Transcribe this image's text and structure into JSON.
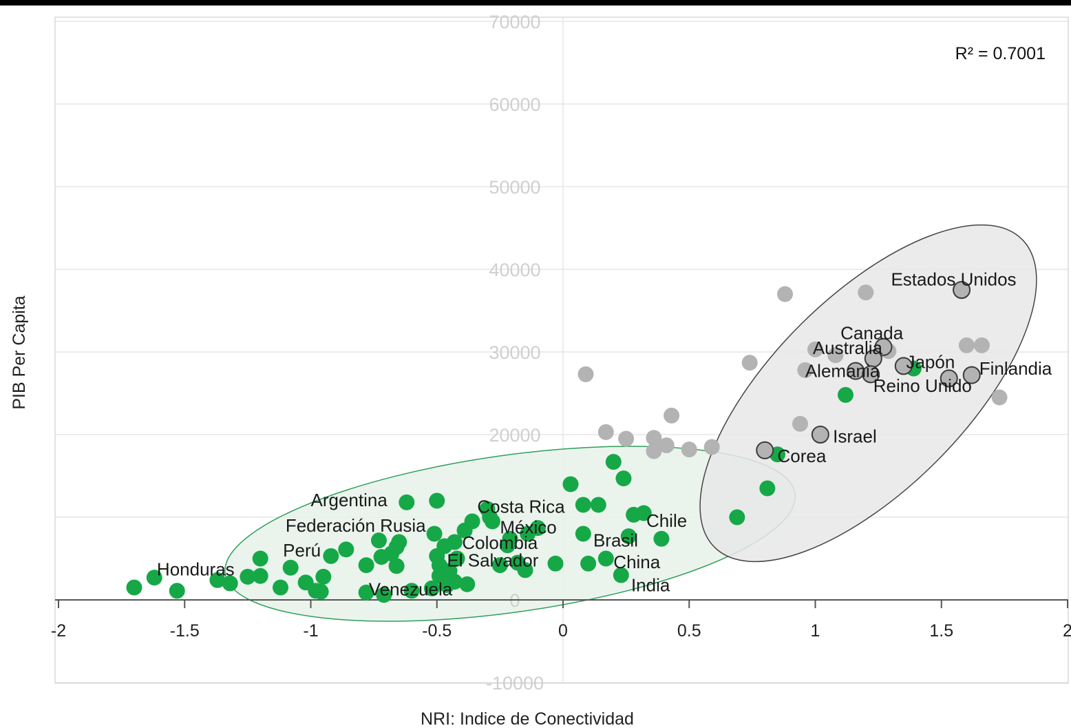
{
  "chart_data": {
    "type": "scatter",
    "xlabel": "NRI: Indice de Conectividad",
    "ylabel": "PIB Per Capita",
    "xlim": [
      -2,
      2
    ],
    "ylim": [
      -10000,
      70000
    ],
    "xticks": [
      -2,
      -1.5,
      -1,
      -0.5,
      0,
      0.5,
      1,
      1.5,
      2
    ],
    "xtick_labels": [
      "-2",
      "-1.5",
      "-1",
      "-0.5",
      "0",
      "0.5",
      "1",
      "1.5",
      "2"
    ],
    "yticks": [
      -10000,
      0,
      10000,
      20000,
      30000,
      40000,
      50000,
      60000,
      70000
    ],
    "ytick_labels": [
      "-10000",
      "0",
      "",
      "20000",
      "30000",
      "40000",
      "50000",
      "60000",
      "70000"
    ],
    "grid": true,
    "annotation": "R² = 0.7001",
    "colors": {
      "green": "#16a847",
      "gray": "#b3b3b3",
      "gray_outlined": "#b3b3b3"
    },
    "series": [
      {
        "color": "green",
        "points": [
          [
            -1.7,
            1500
          ],
          [
            -1.62,
            2700
          ],
          [
            -1.53,
            1100
          ],
          [
            -1.37,
            2400
          ],
          [
            -1.32,
            2000
          ],
          [
            -1.25,
            2800
          ],
          [
            -1.2,
            2900
          ],
          [
            -1.2,
            5000
          ],
          [
            -1.12,
            1500
          ],
          [
            -1.08,
            3900
          ],
          [
            -1.02,
            2100
          ],
          [
            -0.98,
            1100
          ],
          [
            -0.96,
            1000
          ],
          [
            -0.95,
            2800
          ],
          [
            -0.92,
            5300
          ],
          [
            -0.86,
            6100
          ],
          [
            -0.78,
            4200
          ],
          [
            -0.78,
            900
          ],
          [
            -0.73,
            7200
          ],
          [
            -0.72,
            5200
          ],
          [
            -0.71,
            600
          ],
          [
            -0.68,
            5600
          ],
          [
            -0.66,
            6400
          ],
          [
            -0.66,
            4100
          ],
          [
            -0.65,
            7000
          ],
          [
            -0.62,
            11800
          ],
          [
            -0.6,
            1100
          ],
          [
            -0.52,
            1400
          ],
          [
            -0.51,
            8000
          ],
          [
            -0.5,
            12000
          ],
          [
            -0.5,
            5300
          ],
          [
            -0.49,
            4200
          ],
          [
            -0.49,
            2900
          ],
          [
            -0.47,
            6500
          ],
          [
            -0.46,
            1800
          ],
          [
            -0.45,
            3500
          ],
          [
            -0.43,
            7000
          ],
          [
            -0.43,
            2200
          ],
          [
            -0.42,
            5000
          ],
          [
            -0.39,
            8400
          ],
          [
            -0.38,
            1900
          ],
          [
            -0.36,
            9500
          ],
          [
            -0.3,
            11000
          ],
          [
            -0.29,
            10000
          ],
          [
            -0.28,
            9500
          ],
          [
            -0.25,
            4200
          ],
          [
            -0.22,
            6600
          ],
          [
            -0.21,
            7400
          ],
          [
            -0.18,
            4500
          ],
          [
            -0.15,
            3600
          ],
          [
            -0.14,
            8000
          ],
          [
            -0.1,
            8700
          ],
          [
            -0.03,
            4400
          ],
          [
            0.03,
            14000
          ],
          [
            0.08,
            11500
          ],
          [
            0.08,
            8000
          ],
          [
            0.1,
            4400
          ],
          [
            0.14,
            11500
          ],
          [
            0.17,
            5000
          ],
          [
            0.2,
            16700
          ],
          [
            0.23,
            3000
          ],
          [
            0.24,
            14700
          ],
          [
            0.26,
            7700
          ],
          [
            0.28,
            10300
          ],
          [
            0.32,
            10500
          ],
          [
            0.39,
            7400
          ],
          [
            0.69,
            10000
          ],
          [
            0.81,
            13500
          ],
          [
            0.85,
            17600
          ],
          [
            1.12,
            24800
          ],
          [
            1.39,
            28000
          ]
        ]
      },
      {
        "color": "gray",
        "points": [
          [
            0.09,
            27300
          ],
          [
            0.17,
            20300
          ],
          [
            0.25,
            19500
          ],
          [
            0.36,
            18000
          ],
          [
            0.36,
            19600
          ],
          [
            0.41,
            18700
          ],
          [
            0.43,
            22300
          ],
          [
            0.5,
            18200
          ],
          [
            0.59,
            18500
          ],
          [
            0.74,
            28700
          ],
          [
            0.88,
            37000
          ],
          [
            0.94,
            21300
          ],
          [
            0.96,
            27800
          ],
          [
            1.0,
            30300
          ],
          [
            1.08,
            29600
          ],
          [
            1.2,
            37200
          ],
          [
            1.27,
            30300
          ],
          [
            1.29,
            30100
          ],
          [
            1.6,
            30800
          ],
          [
            1.66,
            30800
          ],
          [
            1.73,
            24500
          ]
        ]
      },
      {
        "color": "gray_outlined",
        "points": [
          [
            1.58,
            37500
          ],
          [
            1.27,
            30600
          ],
          [
            1.23,
            29200
          ],
          [
            1.35,
            28300
          ],
          [
            1.16,
            27700
          ],
          [
            1.22,
            27300
          ],
          [
            1.53,
            26800
          ],
          [
            1.62,
            27200
          ],
          [
            1.02,
            20000
          ],
          [
            0.8,
            18100
          ]
        ]
      }
    ],
    "point_labels": [
      {
        "text": "Estados Unidos",
        "x": 1.3,
        "y": 38800
      },
      {
        "text": "Canada",
        "x": 1.1,
        "y": 32300
      },
      {
        "text": "Australia",
        "x": 0.99,
        "y": 30500
      },
      {
        "text": "Japón",
        "x": 1.36,
        "y": 28800
      },
      {
        "text": "Alemania",
        "x": 0.96,
        "y": 27700
      },
      {
        "text": "Finlandia",
        "x": 1.65,
        "y": 28000
      },
      {
        "text": "Reino Unido",
        "x": 1.23,
        "y": 25900
      },
      {
        "text": "Israel",
        "x": 1.07,
        "y": 19800
      },
      {
        "text": "Corea",
        "x": 0.85,
        "y": 17400
      },
      {
        "text": "Argentina",
        "x": -1.0,
        "y": 12100
      },
      {
        "text": "Costa Rica",
        "x": -0.34,
        "y": 11300
      },
      {
        "text": "Chile",
        "x": 0.33,
        "y": 9600
      },
      {
        "text": "Federación Rusia",
        "x": -1.1,
        "y": 9000
      },
      {
        "text": "México",
        "x": -0.25,
        "y": 8800
      },
      {
        "text": "Brasil",
        "x": 0.12,
        "y": 7200
      },
      {
        "text": "Colombia",
        "x": -0.4,
        "y": 6900
      },
      {
        "text": "Perú",
        "x": -1.11,
        "y": 6000
      },
      {
        "text": "El Salvador",
        "x": -0.46,
        "y": 4800
      },
      {
        "text": "China",
        "x": 0.2,
        "y": 4600
      },
      {
        "text": "Honduras",
        "x": -1.61,
        "y": 3700
      },
      {
        "text": "India",
        "x": 0.27,
        "y": 1800
      },
      {
        "text": "Venezuela",
        "x": -0.77,
        "y": 1300
      }
    ],
    "ellipses": [
      {
        "cx": -0.21,
        "cy": 8000,
        "rx": 1.17,
        "ry": 7000,
        "angle_deg": 0,
        "fill": "#e6f2ea",
        "stroke": "#2f9e5a"
      },
      {
        "cx": 1.21,
        "cy": 25000,
        "rx": 0.36,
        "ry": 17000,
        "angle_deg": 0,
        "fill": "#e8e8e8",
        "stroke": "#444444"
      }
    ]
  }
}
